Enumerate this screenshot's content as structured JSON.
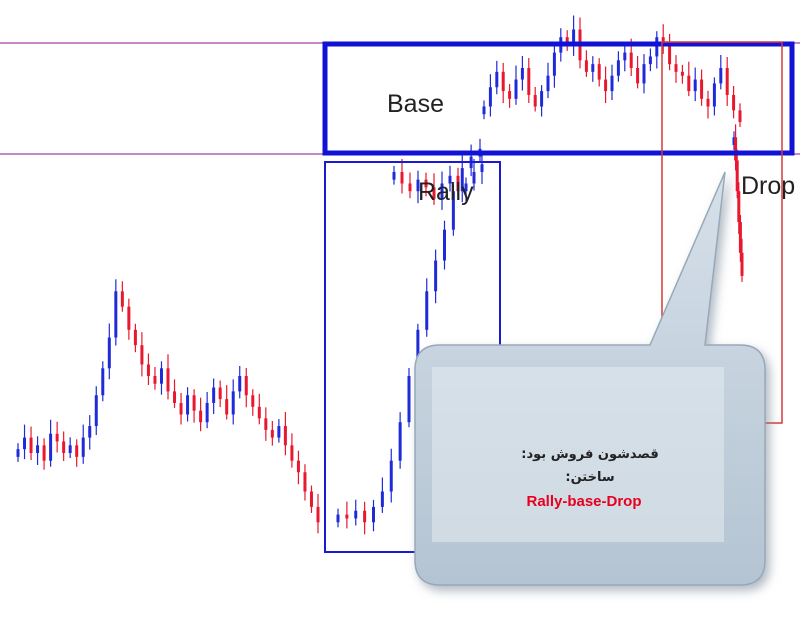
{
  "chart_data": {
    "type": "candlestick",
    "colors": {
      "up": "#1f2bd8",
      "down": "#e8182f",
      "level": "#b061b0",
      "base_box": "#1212d6",
      "rally_box": "#1a1ad2",
      "drop_box": "#d63a3a"
    },
    "annotations": {
      "base": "Base",
      "rally": "Rally",
      "drop": "Drop",
      "callout_line1": "قصدشون فروش بود:",
      "callout_line2": "ساختن:",
      "callout_line3": "Rally-base-Drop"
    },
    "segments": [
      {
        "name": "early-range",
        "closes": [
          0.21,
          0.24,
          0.2,
          0.22,
          0.18,
          0.25,
          0.23,
          0.2,
          0.22,
          0.19,
          0.24,
          0.27,
          0.35,
          0.42,
          0.5,
          0.62,
          0.58,
          0.52,
          0.48,
          0.43,
          0.4,
          0.38,
          0.42,
          0.36,
          0.33,
          0.3,
          0.35,
          0.31,
          0.28,
          0.33,
          0.37,
          0.34,
          0.3,
          0.36,
          0.4,
          0.35,
          0.32,
          0.29,
          0.26,
          0.24,
          0.27,
          0.22,
          0.18,
          0.15,
          0.1,
          0.06,
          0.02
        ]
      },
      {
        "name": "rally",
        "closes": [
          0.04,
          0.03,
          0.05,
          0.02,
          0.06,
          0.1,
          0.18,
          0.28,
          0.4,
          0.52,
          0.62,
          0.7,
          0.78,
          0.88,
          0.94,
          0.97,
          0.99
        ]
      },
      {
        "name": "top-range",
        "closes": [
          0.93,
          0.9,
          0.88,
          0.91,
          0.89,
          0.86,
          0.9,
          0.92,
          0.88,
          0.9,
          0.93,
          0.95
        ]
      },
      {
        "name": "base",
        "closes": [
          1.1,
          1.15,
          1.19,
          1.14,
          1.12,
          1.17,
          1.2,
          1.13,
          1.1,
          1.14,
          1.18,
          1.24,
          1.28,
          1.26,
          1.3,
          1.22,
          1.19,
          1.21,
          1.17,
          1.14,
          1.18,
          1.22,
          1.24,
          1.2,
          1.16,
          1.21,
          1.23,
          1.28,
          1.26,
          1.21,
          1.19,
          1.18,
          1.14,
          1.17,
          1.12,
          1.1,
          1.16,
          1.2,
          1.13,
          1.09,
          1.06
        ]
      },
      {
        "name": "drop",
        "closes": [
          1.02,
          0.96,
          0.88,
          0.8,
          0.72,
          0.66
        ]
      }
    ]
  }
}
